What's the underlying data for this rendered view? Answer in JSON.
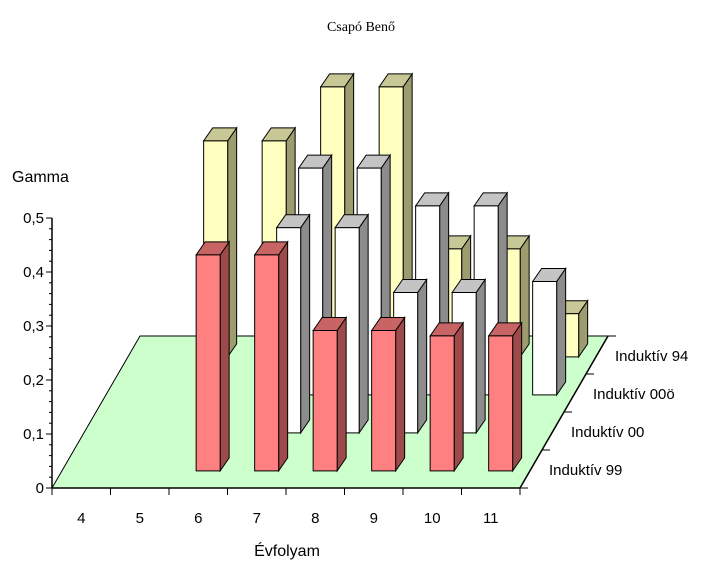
{
  "page_header": "Csapó Benő",
  "chart_data": {
    "type": "bar",
    "ylabel": "Gamma",
    "xlabel": "Évfolyam",
    "ylim": [
      0,
      0.5
    ],
    "yticks": [
      "0",
      "0,1",
      "0,2",
      "0,3",
      "0,4",
      "0,5"
    ],
    "categories": [
      "4",
      "5",
      "6",
      "7",
      "8",
      "9",
      "10",
      "11"
    ],
    "series": [
      {
        "name": "Induktív 99",
        "values": [
          null,
          null,
          0.4,
          0.4,
          0.26,
          0.26,
          0.25,
          0.25
        ]
      },
      {
        "name": "Induktív 00",
        "values": [
          null,
          null,
          null,
          0.38,
          0.38,
          0.26,
          0.26,
          null
        ]
      },
      {
        "name": "Induktív 00ö",
        "values": [
          null,
          null,
          null,
          0.42,
          0.42,
          0.35,
          0.35,
          0.21
        ]
      },
      {
        "name": "Induktív 94",
        "values": [
          null,
          0.4,
          0.4,
          0.5,
          0.5,
          0.2,
          0.2,
          0.08
        ]
      }
    ],
    "colors": {
      "Induktív 99": {
        "front": "#ff8080",
        "side": "#9e4a4a",
        "top": "#c86464"
      },
      "Induktív 00": {
        "front": "#ffffff",
        "side": "#8c8c8c",
        "top": "#c4c4c4"
      },
      "Induktív 00ö": {
        "front": "#ffffff",
        "side": "#8c8c8c",
        "top": "#c4c4c4"
      },
      "Induktív 94": {
        "front": "#ffffc0",
        "side": "#9c9c6e",
        "top": "#c8c896"
      }
    },
    "floor_color": "#ccffcc",
    "grid": false,
    "legend": "right-depth-axis"
  }
}
